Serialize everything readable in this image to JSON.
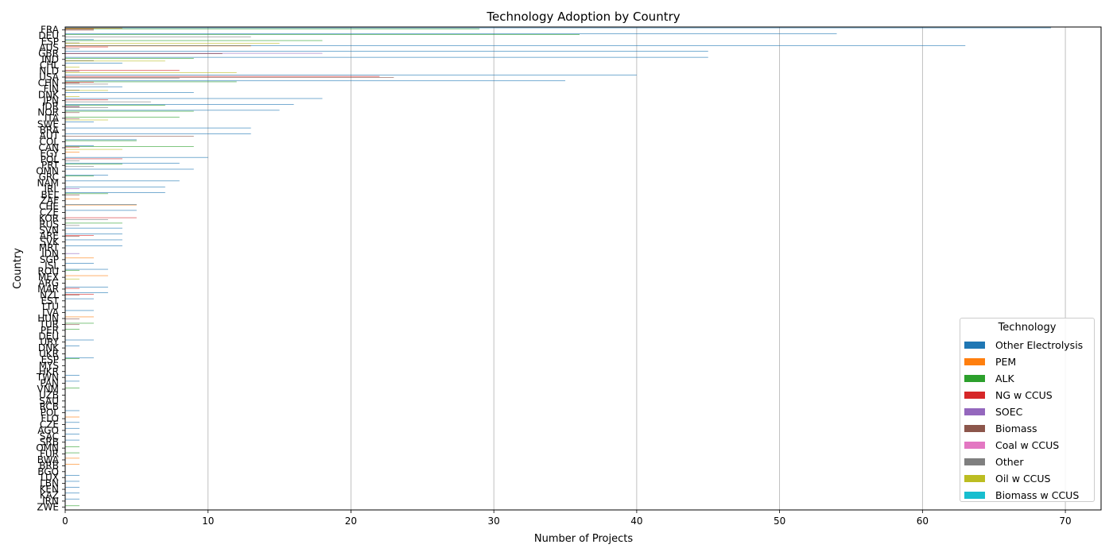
{
  "chart_data": {
    "type": "bar",
    "orientation": "horizontal",
    "title": "Technology Adoption by Country",
    "xlabel": "Number of Projects",
    "ylabel": "Country",
    "xlim": [
      0,
      72.5
    ],
    "xticks": [
      0,
      10,
      20,
      30,
      40,
      50,
      60,
      70
    ],
    "grid": "x",
    "legend": {
      "title": "Technology",
      "placement": "bottom-right"
    },
    "series": [
      {
        "name": "Other Electrolysis",
        "color": "#1f77b4"
      },
      {
        "name": "PEM",
        "color": "#ff7f0e"
      },
      {
        "name": "ALK",
        "color": "#2ca02c"
      },
      {
        "name": "NG w CCUS",
        "color": "#d62728"
      },
      {
        "name": "SOEC",
        "color": "#9467bd"
      },
      {
        "name": "Biomass",
        "color": "#8c564b"
      },
      {
        "name": "Coal w CCUS",
        "color": "#e377c2"
      },
      {
        "name": "Other",
        "color": "#7f7f7f"
      },
      {
        "name": "Oil w CCUS",
        "color": "#bcbd22"
      },
      {
        "name": "Biomass w CCUS",
        "color": "#17becf"
      }
    ],
    "categories": [
      "FRA",
      "DEU",
      "ESP",
      "AUS",
      "GBR",
      "IND",
      "CHL",
      "NLD",
      "USA",
      "CHN",
      "FIN",
      "DNK",
      "JPN",
      "IDR",
      "NOR",
      "ITA",
      "SWE",
      "BRA",
      "AUT",
      "COL",
      "CAN",
      "EGY",
      "POL",
      "PRT",
      "OMN",
      "GRC",
      "NAM",
      "IRL",
      "BEL",
      "ZAF",
      "CHE",
      "CZE",
      "KOR",
      "RUS",
      "SVN",
      "ARE",
      "SVK",
      "MRT",
      "IDN",
      "SGP",
      "ISL",
      "ROU",
      "MEX",
      "ARG",
      "MAR",
      "NZL",
      "EST",
      "LTU",
      "LVA",
      "HUN",
      "TUR",
      "PER",
      "DEU2",
      "URY",
      "DNK2",
      "UKR",
      "ESP2",
      "MYS",
      "HKR",
      "TWN",
      "PAN",
      "VNM",
      "UZB",
      "SAU",
      "RCB",
      "POL2",
      "FLO",
      "CZE2",
      "AGO",
      "SAC",
      "SRB",
      "OMN2",
      "FUR",
      "BWA",
      "BRB",
      "BGO",
      "LUX",
      "LBN",
      "KEN",
      "KAZ",
      "IRN",
      "ZWE"
    ],
    "category_labels": [
      "FRA",
      "DEU",
      "ESP",
      "AUS",
      "GBR",
      "IND",
      "CHL",
      "NLD",
      "USA",
      "CHN",
      "FIN",
      "DNK",
      "JPN",
      "IDR",
      "NOR",
      "ITA",
      "SWE",
      "BRA",
      "AUT",
      "COL",
      "CAN",
      "EGY",
      "POL",
      "PRT",
      "OMN",
      "GRC",
      "NAM",
      "IRL",
      "BEL",
      "ZAF",
      "CHE",
      "CZE",
      "KOR",
      "RUS",
      "SVN",
      "ARE",
      "SVK",
      "MRT",
      "IDN",
      "SGP",
      "ISL",
      "ROU",
      "MEX",
      "ARG",
      "MAR",
      "NZL",
      "EST",
      "LTU",
      "LVA",
      "HUN",
      "TUR",
      "PER",
      "DEU",
      "URY",
      "DNK",
      "UKR",
      "ESP",
      "MYS",
      "HKR",
      "TWN",
      "PAN",
      "VNM",
      "UZB",
      "SAU",
      "RCB",
      "POL",
      "FLO",
      "CZE",
      "AGO",
      "SAC",
      "SRB",
      "OMN",
      "FUR",
      "BWA",
      "BRB",
      "BGO",
      "LUX",
      "LBN",
      "KEN",
      "KAZ",
      "IRN",
      "ZWE"
    ],
    "values": [
      [
        69,
        4,
        29,
        2,
        0,
        2,
        0,
        0,
        0,
        0
      ],
      [
        54,
        0,
        36,
        0,
        0,
        0,
        0,
        13,
        0,
        0
      ],
      [
        2,
        0,
        18,
        0,
        0,
        0,
        0,
        1,
        15,
        0
      ],
      [
        63,
        13,
        0,
        3,
        0,
        0,
        0,
        1,
        0,
        0
      ],
      [
        45,
        0,
        0,
        0,
        18,
        11,
        0,
        0,
        0,
        0
      ],
      [
        45,
        0,
        9,
        0,
        0,
        0,
        0,
        2,
        7,
        0
      ],
      [
        4,
        0,
        0,
        0,
        0,
        0,
        0,
        0,
        1,
        0
      ],
      [
        0,
        0,
        0,
        8,
        0,
        1,
        0,
        0,
        12,
        0
      ],
      [
        40,
        0,
        0,
        22,
        0,
        23,
        0,
        8,
        0,
        0
      ],
      [
        35,
        0,
        12,
        2,
        0,
        1,
        0,
        3,
        0,
        0
      ],
      [
        4,
        0,
        0,
        0,
        0,
        0,
        0,
        1,
        3,
        0
      ],
      [
        9,
        0,
        0,
        0,
        0,
        0,
        0,
        0,
        1,
        0
      ],
      [
        18,
        0,
        0,
        3,
        0,
        0,
        0,
        6,
        0,
        0
      ],
      [
        16,
        0,
        7,
        0,
        1,
        1,
        0,
        3,
        0,
        0
      ],
      [
        15,
        0,
        9,
        0,
        0,
        1,
        0,
        0,
        0,
        0
      ],
      [
        0,
        0,
        8,
        0,
        0,
        1,
        0,
        0,
        3,
        0
      ],
      [
        2,
        0,
        0,
        0,
        0,
        0,
        0,
        0,
        0,
        0
      ],
      [
        13,
        0,
        0,
        0,
        0,
        0,
        0,
        0,
        0,
        0
      ],
      [
        13,
        0,
        0,
        0,
        0,
        9,
        0,
        0,
        0,
        0
      ],
      [
        5,
        0,
        5,
        0,
        0,
        0,
        0,
        0,
        0,
        0
      ],
      [
        2,
        0,
        9,
        1,
        0,
        0,
        0,
        0,
        4,
        0
      ],
      [
        0,
        1,
        0,
        0,
        0,
        0,
        0,
        0,
        0,
        0
      ],
      [
        10,
        0,
        0,
        4,
        0,
        0,
        0,
        1,
        0,
        0
      ],
      [
        8,
        0,
        4,
        0,
        0,
        0,
        0,
        2,
        0,
        0
      ],
      [
        9,
        0,
        0,
        0,
        0,
        0,
        0,
        0,
        0,
        0
      ],
      [
        3,
        0,
        2,
        0,
        0,
        0,
        0,
        0,
        0,
        0
      ],
      [
        8,
        0,
        0,
        0,
        0,
        0,
        0,
        0,
        0,
        0
      ],
      [
        7,
        0,
        0,
        0,
        1,
        0,
        0,
        0,
        0,
        0
      ],
      [
        7,
        0,
        3,
        0,
        0,
        1,
        0,
        0,
        0,
        0
      ],
      [
        0,
        1,
        0,
        0,
        0,
        0,
        0,
        0,
        0,
        0
      ],
      [
        5,
        5,
        0,
        0,
        0,
        0,
        0,
        0,
        0,
        0
      ],
      [
        5,
        0,
        0,
        0,
        0,
        0,
        0,
        0,
        0,
        0
      ],
      [
        0,
        0,
        0,
        5,
        0,
        0,
        0,
        3,
        0,
        0
      ],
      [
        0,
        0,
        4,
        0,
        0,
        0,
        0,
        1,
        0,
        0
      ],
      [
        4,
        0,
        0,
        0,
        0,
        0,
        0,
        0,
        0,
        0
      ],
      [
        4,
        0,
        0,
        2,
        0,
        1,
        0,
        0,
        0,
        0
      ],
      [
        4,
        0,
        0,
        0,
        0,
        0,
        0,
        0,
        0,
        0
      ],
      [
        4,
        0,
        0,
        0,
        0,
        0,
        0,
        0,
        0,
        0
      ],
      [
        0,
        0,
        0,
        0,
        1,
        0,
        0,
        0,
        0,
        0
      ],
      [
        0,
        2,
        0,
        0,
        0,
        0,
        0,
        0,
        0,
        0
      ],
      [
        2,
        0,
        0,
        0,
        0,
        0,
        0,
        0,
        0,
        0
      ],
      [
        3,
        0,
        1,
        0,
        0,
        0,
        0,
        0,
        0,
        0
      ],
      [
        0,
        3,
        0,
        0,
        0,
        0,
        0,
        0,
        1,
        0
      ],
      [
        0,
        0,
        0,
        0,
        0,
        0,
        0,
        0,
        0,
        0
      ],
      [
        3,
        0,
        0,
        1,
        0,
        0,
        0,
        0,
        0,
        0
      ],
      [
        3,
        0,
        0,
        2,
        0,
        1,
        0,
        0,
        0,
        0
      ],
      [
        2,
        0,
        0,
        0,
        0,
        0,
        0,
        0,
        0,
        0
      ],
      [
        0,
        0,
        0,
        0,
        0,
        0,
        0,
        0,
        0,
        0
      ],
      [
        2,
        0,
        0,
        0,
        0,
        0,
        0,
        0,
        0,
        0
      ],
      [
        0,
        2,
        0,
        0,
        0,
        1,
        0,
        0,
        0,
        0
      ],
      [
        0,
        0,
        2,
        0,
        0,
        1,
        0,
        0,
        0,
        0
      ],
      [
        0,
        0,
        1,
        0,
        0,
        0,
        0,
        0,
        0,
        0
      ],
      [
        0,
        0,
        0,
        0,
        0,
        0,
        0,
        0,
        0,
        0
      ],
      [
        2,
        0,
        0,
        0,
        0,
        0,
        0,
        0,
        0,
        0
      ],
      [
        1,
        0,
        0,
        0,
        0,
        0,
        0,
        0,
        0,
        0
      ],
      [
        0,
        0,
        0,
        0,
        0,
        0,
        0,
        0,
        0,
        0
      ],
      [
        2,
        0,
        1,
        0,
        0,
        0,
        0,
        0,
        0,
        0
      ],
      [
        0,
        0,
        0,
        0,
        0,
        0,
        0,
        0,
        0,
        0
      ],
      [
        0,
        0,
        0,
        0,
        0,
        0,
        0,
        0,
        0,
        0
      ],
      [
        1,
        0,
        0,
        0,
        0,
        0,
        0,
        0,
        0,
        0
      ],
      [
        1,
        0,
        0,
        0,
        0,
        0,
        0,
        0,
        0,
        0
      ],
      [
        0,
        0,
        1,
        0,
        0,
        0,
        0,
        0,
        0,
        0
      ],
      [
        0,
        0,
        0,
        0,
        0,
        0,
        0,
        0,
        0,
        0
      ],
      [
        0,
        0,
        0,
        0,
        0,
        0,
        0,
        0,
        0,
        0
      ],
      [
        0,
        0,
        0,
        0,
        0,
        0,
        0,
        0,
        0,
        0
      ],
      [
        1,
        0,
        0,
        0,
        0,
        0,
        0,
        0,
        0,
        0
      ],
      [
        0,
        1,
        0,
        0,
        0,
        0,
        0,
        0,
        0,
        0
      ],
      [
        1,
        0,
        0,
        0,
        0,
        0,
        0,
        0,
        0,
        0
      ],
      [
        1,
        0,
        0,
        0,
        0,
        0,
        0,
        0,
        0,
        0
      ],
      [
        1,
        0,
        0,
        0,
        0,
        0,
        0,
        0,
        0,
        0
      ],
      [
        1,
        0,
        0,
        0,
        0,
        0,
        0,
        0,
        0,
        0
      ],
      [
        0,
        0,
        1,
        0,
        0,
        0,
        0,
        0,
        0,
        0
      ],
      [
        0,
        0,
        1,
        0,
        0,
        0,
        0,
        0,
        0,
        0
      ],
      [
        0,
        1,
        0,
        0,
        0,
        0,
        0,
        0,
        0,
        0
      ],
      [
        0,
        1,
        0,
        0,
        0,
        0,
        0,
        0,
        0,
        0
      ],
      [
        0,
        0,
        0,
        0,
        0,
        0,
        0,
        0,
        0,
        0
      ],
      [
        1,
        0,
        0,
        0,
        0,
        0,
        0,
        0,
        0,
        0
      ],
      [
        1,
        0,
        0,
        0,
        0,
        0,
        0,
        0,
        0,
        0
      ],
      [
        1,
        0,
        0,
        0,
        0,
        0,
        0,
        0,
        0,
        0
      ],
      [
        1,
        0,
        0,
        0,
        0,
        0,
        0,
        0,
        0,
        0
      ],
      [
        1,
        0,
        0,
        0,
        0,
        0,
        0,
        0,
        0,
        0
      ],
      [
        0,
        0,
        1,
        0,
        0,
        0,
        0,
        0,
        0,
        0
      ]
    ]
  }
}
